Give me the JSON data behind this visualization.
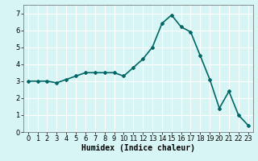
{
  "x": [
    0,
    1,
    2,
    3,
    4,
    5,
    6,
    7,
    8,
    9,
    10,
    11,
    12,
    13,
    14,
    15,
    16,
    17,
    18,
    19,
    20,
    21,
    22,
    23
  ],
  "y": [
    3.0,
    3.0,
    3.0,
    2.9,
    3.1,
    3.3,
    3.5,
    3.5,
    3.5,
    3.5,
    3.3,
    3.8,
    4.3,
    5.0,
    6.4,
    6.9,
    6.2,
    5.9,
    4.5,
    3.1,
    1.4,
    2.4,
    1.0,
    0.4
  ],
  "line_color": "#006666",
  "marker": "D",
  "marker_size": 2,
  "xlabel": "Humidex (Indice chaleur)",
  "xlim": [
    -0.5,
    23.5
  ],
  "ylim": [
    0,
    7.5
  ],
  "yticks": [
    0,
    1,
    2,
    3,
    4,
    5,
    6,
    7
  ],
  "xticks": [
    0,
    1,
    2,
    3,
    4,
    5,
    6,
    7,
    8,
    9,
    10,
    11,
    12,
    13,
    14,
    15,
    16,
    17,
    18,
    19,
    20,
    21,
    22,
    23
  ],
  "bg_color": "#d8f5f5",
  "grid_color": "#f5b8b8",
  "grid_color_major": "#ffffff",
  "axes_color": "#666666",
  "xlabel_fontsize": 7,
  "tick_fontsize": 6,
  "line_width": 1.2
}
